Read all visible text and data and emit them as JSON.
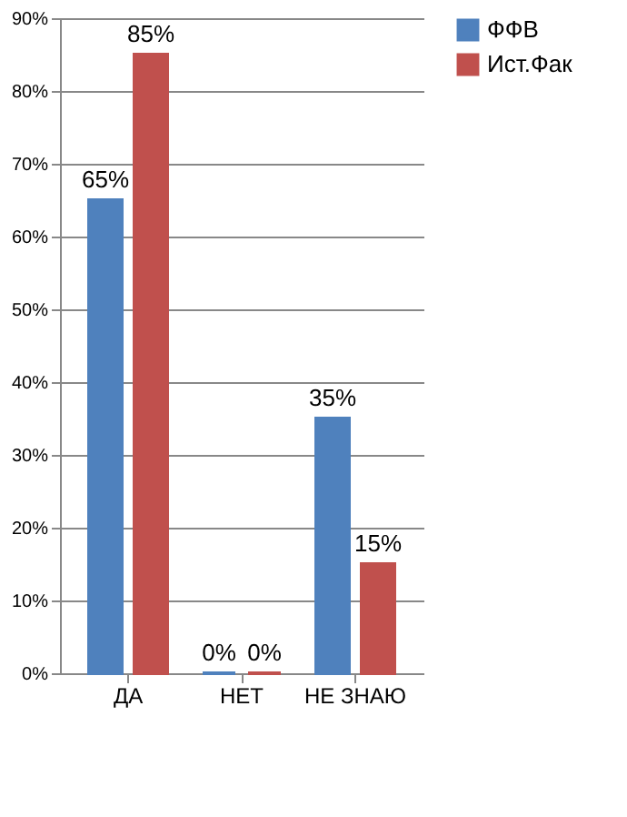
{
  "chart_data": {
    "type": "bar",
    "categories": [
      "ДА",
      "НЕТ",
      "НЕ ЗНАЮ"
    ],
    "series": [
      {
        "name": "ФФВ",
        "color": "#4f81bd",
        "values": [
          65,
          0,
          35
        ],
        "value_labels": [
          "65%",
          "0%",
          "35%"
        ]
      },
      {
        "name": "Ист.Фак",
        "color": "#c0504d",
        "values": [
          85,
          0,
          15
        ],
        "value_labels": [
          "85%",
          "0%",
          "15%"
        ]
      }
    ],
    "ylim": [
      0,
      90
    ],
    "yticks": [
      {
        "value": 0,
        "label": "0%"
      },
      {
        "value": 10,
        "label": "10%"
      },
      {
        "value": 20,
        "label": "20%"
      },
      {
        "value": 30,
        "label": "30%"
      },
      {
        "value": 40,
        "label": "40%"
      },
      {
        "value": 50,
        "label": "50%"
      },
      {
        "value": 60,
        "label": "60%"
      },
      {
        "value": 70,
        "label": "70%"
      },
      {
        "value": 80,
        "label": "80%"
      },
      {
        "value": 90,
        "label": "90%"
      }
    ],
    "grid": "y",
    "legend": "right"
  }
}
